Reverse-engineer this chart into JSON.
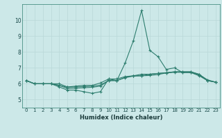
{
  "title": "",
  "xlabel": "Humidex (Indice chaleur)",
  "bg_color": "#cce8e8",
  "line_color": "#2d7d6e",
  "grid_color": "#b8d8d8",
  "xlim": [
    -0.5,
    23.5
  ],
  "ylim": [
    4.5,
    11.0
  ],
  "xticks": [
    0,
    1,
    2,
    3,
    4,
    5,
    6,
    7,
    8,
    9,
    10,
    11,
    12,
    13,
    14,
    15,
    16,
    17,
    18,
    19,
    20,
    21,
    22,
    23
  ],
  "yticks": [
    5,
    6,
    7,
    8,
    9,
    10
  ],
  "series": [
    [
      6.2,
      6.0,
      6.0,
      6.0,
      5.8,
      5.6,
      5.6,
      5.5,
      5.4,
      5.5,
      6.3,
      6.2,
      7.3,
      8.7,
      10.6,
      8.1,
      7.7,
      6.9,
      7.0,
      6.7,
      6.7,
      6.5,
      6.2,
      6.1
    ],
    [
      6.2,
      6.0,
      6.0,
      6.0,
      6.0,
      5.8,
      5.85,
      5.9,
      5.9,
      6.05,
      6.3,
      6.3,
      6.45,
      6.5,
      6.6,
      6.6,
      6.65,
      6.7,
      6.75,
      6.75,
      6.75,
      6.6,
      6.2,
      6.1
    ],
    [
      6.2,
      6.0,
      6.0,
      6.0,
      5.9,
      5.7,
      5.72,
      5.75,
      5.78,
      5.85,
      6.2,
      6.2,
      6.4,
      6.5,
      6.5,
      6.6,
      6.65,
      6.68,
      6.72,
      6.72,
      6.72,
      6.55,
      6.2,
      6.1
    ],
    [
      6.2,
      6.0,
      6.0,
      6.0,
      5.9,
      5.78,
      5.8,
      5.82,
      5.85,
      5.92,
      6.2,
      6.2,
      6.38,
      6.48,
      6.5,
      6.52,
      6.58,
      6.68,
      6.75,
      6.75,
      6.75,
      6.58,
      6.25,
      6.1
    ]
  ]
}
